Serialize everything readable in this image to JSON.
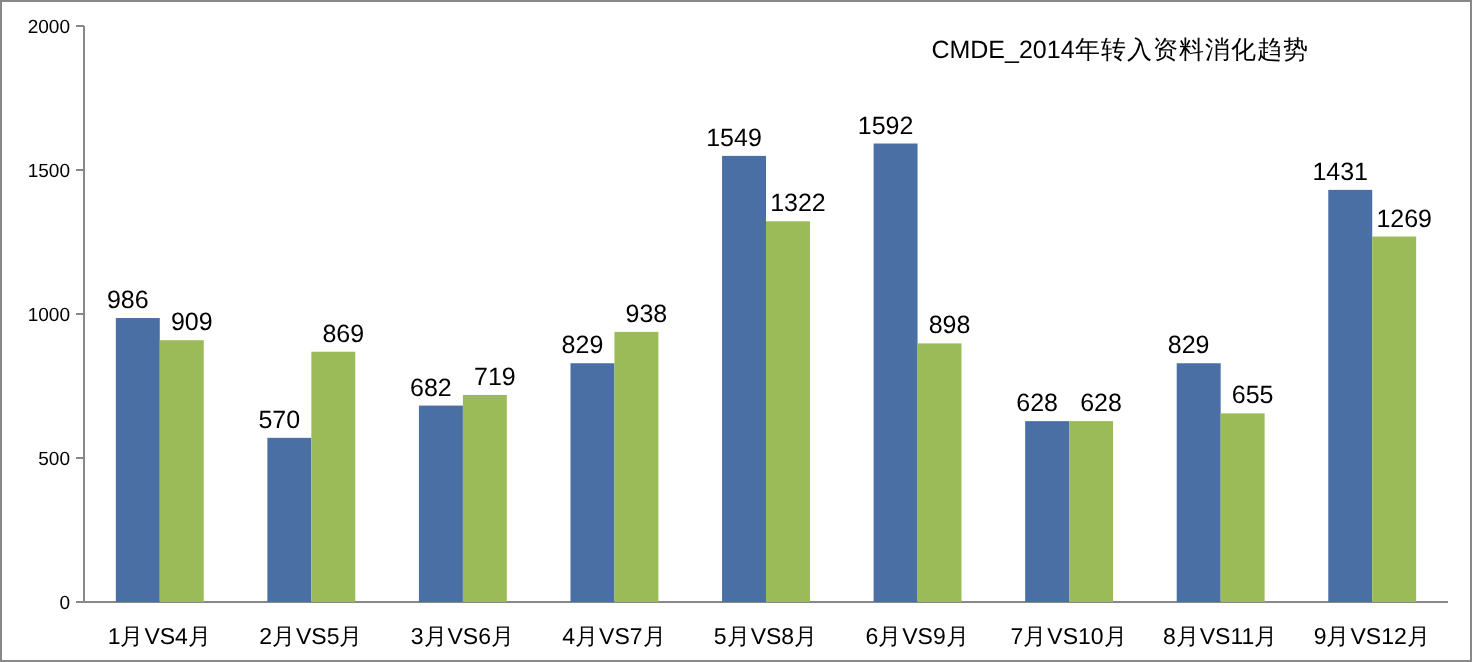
{
  "chart_data": {
    "type": "bar",
    "title": "CMDE_2014年转入资料消化趋势",
    "categories": [
      "1月VS4月",
      "2月VS5月",
      "3月VS6月",
      "4月VS7月",
      "5月VS8月",
      "6月VS9月",
      "7月VS10月",
      "8月VS11月",
      "9月VS12月"
    ],
    "series": [
      {
        "color": "#4a6fa5",
        "values": [
          986,
          570,
          682,
          829,
          1549,
          1592,
          628,
          829,
          1431
        ]
      },
      {
        "color": "#9bbb59",
        "values": [
          909,
          869,
          719,
          938,
          1322,
          898,
          628,
          655,
          1269
        ]
      }
    ],
    "ylim": [
      0,
      2000
    ],
    "yticks": [
      0,
      500,
      1000,
      1500,
      2000
    ],
    "grid": false,
    "data_labels": true
  }
}
